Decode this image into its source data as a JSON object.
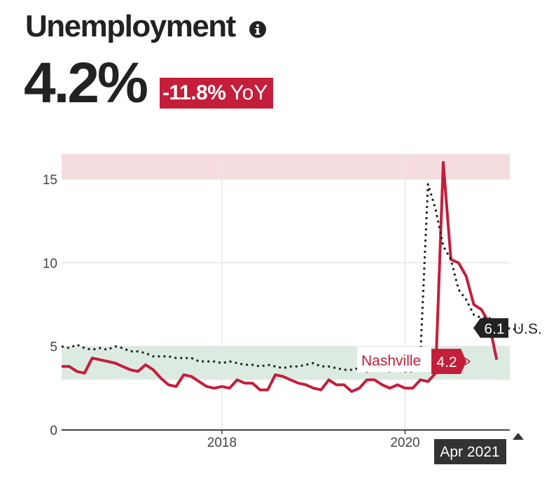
{
  "header": {
    "title": "Unemployment",
    "info_icon": "info-icon",
    "value": "4.2%",
    "yoy_value": "-11.8%",
    "yoy_unit": "YoY"
  },
  "colors": {
    "nashville": "#c41e3a",
    "us": "#222222",
    "high_band": "#f5dcdf",
    "normal_band": "#dcebe2",
    "grid": "#e6e6e6",
    "axis": "#444444"
  },
  "chart_data": {
    "type": "line",
    "title": "",
    "xlabel": "",
    "ylabel": "",
    "ylim": [
      0,
      16
    ],
    "xlim": [
      "2016-04",
      "2021-05"
    ],
    "y_ticks": [
      0,
      5,
      10,
      15
    ],
    "x_ticks": [
      "2018",
      "2020"
    ],
    "grid": true,
    "bands": [
      {
        "from": 15,
        "to": 16.5,
        "color": "high_band"
      },
      {
        "from": 3,
        "to": 5,
        "color": "normal_band"
      }
    ],
    "x": [
      "2016-04",
      "2016-05",
      "2016-06",
      "2016-07",
      "2016-08",
      "2016-09",
      "2016-10",
      "2016-11",
      "2016-12",
      "2017-01",
      "2017-02",
      "2017-03",
      "2017-04",
      "2017-05",
      "2017-06",
      "2017-07",
      "2017-08",
      "2017-09",
      "2017-10",
      "2017-11",
      "2017-12",
      "2018-01",
      "2018-02",
      "2018-03",
      "2018-04",
      "2018-05",
      "2018-06",
      "2018-07",
      "2018-08",
      "2018-09",
      "2018-10",
      "2018-11",
      "2018-12",
      "2019-01",
      "2019-02",
      "2019-03",
      "2019-04",
      "2019-05",
      "2019-06",
      "2019-07",
      "2019-08",
      "2019-09",
      "2019-10",
      "2019-11",
      "2019-12",
      "2020-01",
      "2020-02",
      "2020-03",
      "2020-04",
      "2020-05",
      "2020-06",
      "2020-07",
      "2020-08",
      "2020-09",
      "2020-10",
      "2020-11",
      "2020-12",
      "2021-01",
      "2021-02",
      "2021-03",
      "2021-04"
    ],
    "series": [
      {
        "name": "Nashville",
        "label_value": "4.2",
        "color": "nashville",
        "style": "solid",
        "values": [
          3.8,
          3.8,
          3.5,
          3.4,
          4.3,
          4.2,
          4.1,
          4.0,
          3.8,
          3.6,
          3.5,
          3.9,
          3.6,
          3.1,
          2.7,
          2.6,
          3.3,
          3.2,
          2.9,
          2.6,
          2.5,
          2.6,
          2.5,
          3.0,
          2.8,
          2.8,
          2.4,
          2.4,
          3.3,
          3.2,
          3.0,
          2.8,
          2.7,
          2.5,
          2.4,
          3.0,
          2.7,
          2.7,
          2.3,
          2.5,
          3.0,
          3.0,
          2.7,
          2.5,
          2.7,
          2.5,
          2.5,
          3.0,
          2.9,
          3.4,
          16.0,
          10.2,
          10.0,
          9.2,
          7.5,
          7.2,
          6.4,
          4.2,
          null,
          null,
          null
        ]
      },
      {
        "name": "U.S.",
        "label_value": "6.1",
        "color": "us",
        "style": "dotted",
        "values": [
          5.0,
          4.9,
          5.1,
          4.9,
          4.8,
          4.9,
          4.8,
          5.0,
          4.9,
          4.7,
          4.7,
          4.6,
          4.4,
          4.4,
          4.4,
          4.3,
          4.3,
          4.3,
          4.1,
          4.1,
          4.1,
          4.0,
          4.1,
          4.0,
          3.9,
          3.9,
          3.8,
          3.9,
          3.8,
          3.7,
          3.8,
          3.8,
          3.9,
          4.0,
          3.8,
          3.8,
          3.7,
          3.6,
          3.6,
          3.7,
          3.5,
          3.6,
          3.6,
          3.5,
          3.6,
          3.5,
          3.5,
          4.4,
          14.7,
          13.2,
          11.0,
          10.2,
          8.4,
          7.8,
          6.9,
          6.7,
          6.7,
          6.3,
          6.2,
          6.0,
          6.1
        ]
      }
    ],
    "hover_label": "Apr 2021"
  }
}
